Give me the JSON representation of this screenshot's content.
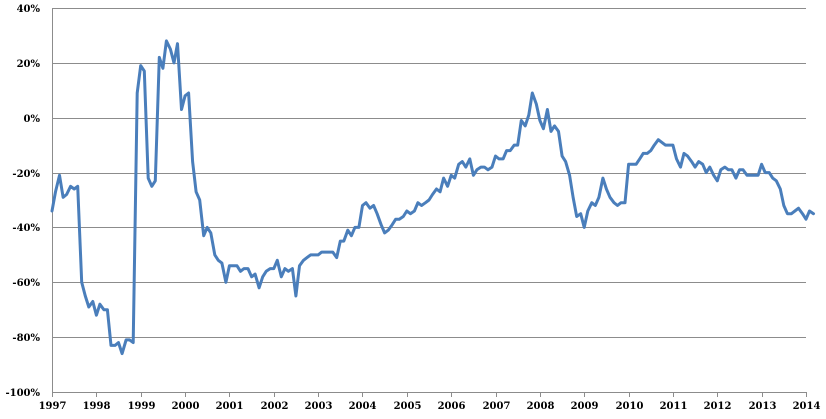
{
  "chart_data": {
    "type": "line",
    "title": "",
    "xlabel": "",
    "ylabel": "",
    "ylim": [
      -100,
      40
    ],
    "xlim": [
      1997.0,
      2014.0
    ],
    "y_ticks": [
      40,
      20,
      0,
      -20,
      -40,
      -60,
      -80,
      -100
    ],
    "y_tick_labels": [
      "40%",
      "20%",
      "0%",
      "-20%",
      "-40%",
      "-60%",
      "-80%",
      "-100%"
    ],
    "x_ticks": [
      1997,
      1998,
      1999,
      2000,
      2001,
      2002,
      2003,
      2004,
      2005,
      2006,
      2007,
      2008,
      2009,
      2010,
      2011,
      2012,
      2013,
      2014
    ],
    "x_tick_labels": [
      "1997",
      "1998",
      "1999",
      "2000",
      "2001",
      "2002",
      "2003",
      "2004",
      "2005",
      "2006",
      "2007",
      "2008",
      "2009",
      "2010",
      "2011",
      "2012",
      "2013",
      "2014"
    ],
    "grid": "horizontal",
    "legend": "none",
    "series": [
      {
        "color": "#4a7ebb",
        "points": [
          [
            1997.0,
            -34
          ],
          [
            1997.08,
            -27
          ],
          [
            1997.17,
            -21
          ],
          [
            1997.25,
            -29
          ],
          [
            1997.33,
            -28
          ],
          [
            1997.42,
            -25
          ],
          [
            1997.5,
            -26
          ],
          [
            1997.58,
            -25
          ],
          [
            1997.67,
            -60
          ],
          [
            1997.75,
            -65
          ],
          [
            1997.83,
            -69
          ],
          [
            1997.92,
            -67
          ],
          [
            1998.0,
            -72
          ],
          [
            1998.08,
            -68
          ],
          [
            1998.17,
            -70
          ],
          [
            1998.25,
            -70
          ],
          [
            1998.33,
            -83
          ],
          [
            1998.42,
            -83
          ],
          [
            1998.5,
            -82
          ],
          [
            1998.58,
            -86
          ],
          [
            1998.67,
            -81
          ],
          [
            1998.75,
            -81
          ],
          [
            1998.83,
            -82
          ],
          [
            1998.92,
            9
          ],
          [
            1999.0,
            19
          ],
          [
            1999.08,
            17
          ],
          [
            1999.17,
            -22
          ],
          [
            1999.25,
            -25
          ],
          [
            1999.33,
            -23
          ],
          [
            1999.42,
            22
          ],
          [
            1999.5,
            18
          ],
          [
            1999.58,
            28
          ],
          [
            1999.67,
            25
          ],
          [
            1999.75,
            20
          ],
          [
            1999.83,
            27
          ],
          [
            1999.92,
            3
          ],
          [
            2000.0,
            8
          ],
          [
            2000.08,
            9
          ],
          [
            2000.17,
            -16
          ],
          [
            2000.25,
            -27
          ],
          [
            2000.33,
            -30
          ],
          [
            2000.42,
            -43
          ],
          [
            2000.5,
            -40
          ],
          [
            2000.58,
            -42
          ],
          [
            2000.67,
            -50
          ],
          [
            2000.75,
            -52
          ],
          [
            2000.83,
            -53
          ],
          [
            2000.92,
            -60
          ],
          [
            2001.0,
            -54
          ],
          [
            2001.08,
            -54
          ],
          [
            2001.17,
            -54
          ],
          [
            2001.25,
            -56
          ],
          [
            2001.33,
            -55
          ],
          [
            2001.42,
            -55
          ],
          [
            2001.5,
            -58
          ],
          [
            2001.58,
            -57
          ],
          [
            2001.67,
            -62
          ],
          [
            2001.75,
            -58
          ],
          [
            2001.83,
            -56
          ],
          [
            2001.92,
            -55
          ],
          [
            2002.0,
            -55
          ],
          [
            2002.08,
            -52
          ],
          [
            2002.17,
            -58
          ],
          [
            2002.25,
            -55
          ],
          [
            2002.33,
            -56
          ],
          [
            2002.42,
            -55
          ],
          [
            2002.5,
            -65
          ],
          [
            2002.58,
            -54
          ],
          [
            2002.67,
            -52
          ],
          [
            2002.75,
            -51
          ],
          [
            2002.83,
            -50
          ],
          [
            2002.92,
            -50
          ],
          [
            2003.0,
            -50
          ],
          [
            2003.08,
            -49
          ],
          [
            2003.17,
            -49
          ],
          [
            2003.25,
            -49
          ],
          [
            2003.33,
            -49
          ],
          [
            2003.42,
            -51
          ],
          [
            2003.5,
            -45
          ],
          [
            2003.58,
            -45
          ],
          [
            2003.67,
            -41
          ],
          [
            2003.75,
            -43
          ],
          [
            2003.83,
            -40
          ],
          [
            2003.92,
            -40
          ],
          [
            2004.0,
            -32
          ],
          [
            2004.08,
            -31
          ],
          [
            2004.17,
            -33
          ],
          [
            2004.25,
            -32
          ],
          [
            2004.33,
            -35
          ],
          [
            2004.42,
            -39
          ],
          [
            2004.5,
            -42
          ],
          [
            2004.58,
            -41
          ],
          [
            2004.67,
            -39
          ],
          [
            2004.75,
            -37
          ],
          [
            2004.83,
            -37
          ],
          [
            2004.92,
            -36
          ],
          [
            2005.0,
            -34
          ],
          [
            2005.08,
            -35
          ],
          [
            2005.17,
            -34
          ],
          [
            2005.25,
            -31
          ],
          [
            2005.33,
            -32
          ],
          [
            2005.42,
            -31
          ],
          [
            2005.5,
            -30
          ],
          [
            2005.58,
            -28
          ],
          [
            2005.67,
            -26
          ],
          [
            2005.75,
            -27
          ],
          [
            2005.83,
            -22
          ],
          [
            2005.92,
            -25
          ],
          [
            2006.0,
            -21
          ],
          [
            2006.08,
            -22
          ],
          [
            2006.17,
            -17
          ],
          [
            2006.25,
            -16
          ],
          [
            2006.33,
            -18
          ],
          [
            2006.42,
            -15
          ],
          [
            2006.5,
            -21
          ],
          [
            2006.58,
            -19
          ],
          [
            2006.67,
            -18
          ],
          [
            2006.75,
            -18
          ],
          [
            2006.83,
            -19
          ],
          [
            2006.92,
            -18
          ],
          [
            2007.0,
            -14
          ],
          [
            2007.08,
            -15
          ],
          [
            2007.17,
            -15
          ],
          [
            2007.25,
            -12
          ],
          [
            2007.33,
            -12
          ],
          [
            2007.42,
            -10
          ],
          [
            2007.5,
            -10
          ],
          [
            2007.58,
            -1
          ],
          [
            2007.67,
            -3
          ],
          [
            2007.75,
            1
          ],
          [
            2007.83,
            9
          ],
          [
            2007.92,
            5
          ],
          [
            2008.0,
            -1
          ],
          [
            2008.08,
            -4
          ],
          [
            2008.17,
            3
          ],
          [
            2008.25,
            -5
          ],
          [
            2008.33,
            -3
          ],
          [
            2008.42,
            -5
          ],
          [
            2008.5,
            -14
          ],
          [
            2008.58,
            -16
          ],
          [
            2008.67,
            -21
          ],
          [
            2008.75,
            -29
          ],
          [
            2008.83,
            -36
          ],
          [
            2008.92,
            -35
          ],
          [
            2009.0,
            -40
          ],
          [
            2009.08,
            -34
          ],
          [
            2009.17,
            -31
          ],
          [
            2009.25,
            -32
          ],
          [
            2009.33,
            -29
          ],
          [
            2009.42,
            -22
          ],
          [
            2009.5,
            -26
          ],
          [
            2009.58,
            -29
          ],
          [
            2009.67,
            -31
          ],
          [
            2009.75,
            -32
          ],
          [
            2009.83,
            -31
          ],
          [
            2009.92,
            -31
          ],
          [
            2010.0,
            -17
          ],
          [
            2010.08,
            -17
          ],
          [
            2010.17,
            -17
          ],
          [
            2010.25,
            -15
          ],
          [
            2010.33,
            -13
          ],
          [
            2010.42,
            -13
          ],
          [
            2010.5,
            -12
          ],
          [
            2010.58,
            -10
          ],
          [
            2010.67,
            -8
          ],
          [
            2010.75,
            -9
          ],
          [
            2010.83,
            -10
          ],
          [
            2010.92,
            -10
          ],
          [
            2011.0,
            -10
          ],
          [
            2011.08,
            -15
          ],
          [
            2011.17,
            -18
          ],
          [
            2011.25,
            -13
          ],
          [
            2011.33,
            -14
          ],
          [
            2011.42,
            -16
          ],
          [
            2011.5,
            -18
          ],
          [
            2011.58,
            -16
          ],
          [
            2011.67,
            -17
          ],
          [
            2011.75,
            -20
          ],
          [
            2011.83,
            -18
          ],
          [
            2011.92,
            -21
          ],
          [
            2012.0,
            -23
          ],
          [
            2012.08,
            -19
          ],
          [
            2012.17,
            -18
          ],
          [
            2012.25,
            -19
          ],
          [
            2012.33,
            -19
          ],
          [
            2012.42,
            -22
          ],
          [
            2012.5,
            -19
          ],
          [
            2012.58,
            -19
          ],
          [
            2012.67,
            -21
          ],
          [
            2012.75,
            -21
          ],
          [
            2012.83,
            -21
          ],
          [
            2012.92,
            -21
          ],
          [
            2013.0,
            -17
          ],
          [
            2013.08,
            -20
          ],
          [
            2013.17,
            -20
          ],
          [
            2013.25,
            -22
          ],
          [
            2013.33,
            -23
          ],
          [
            2013.42,
            -26
          ],
          [
            2013.5,
            -32
          ],
          [
            2013.58,
            -35
          ],
          [
            2013.67,
            -35
          ],
          [
            2013.75,
            -34
          ],
          [
            2013.83,
            -33
          ],
          [
            2013.92,
            -35
          ],
          [
            2014.0,
            -37
          ],
          [
            2014.08,
            -34
          ],
          [
            2014.17,
            -35
          ]
        ]
      }
    ]
  }
}
